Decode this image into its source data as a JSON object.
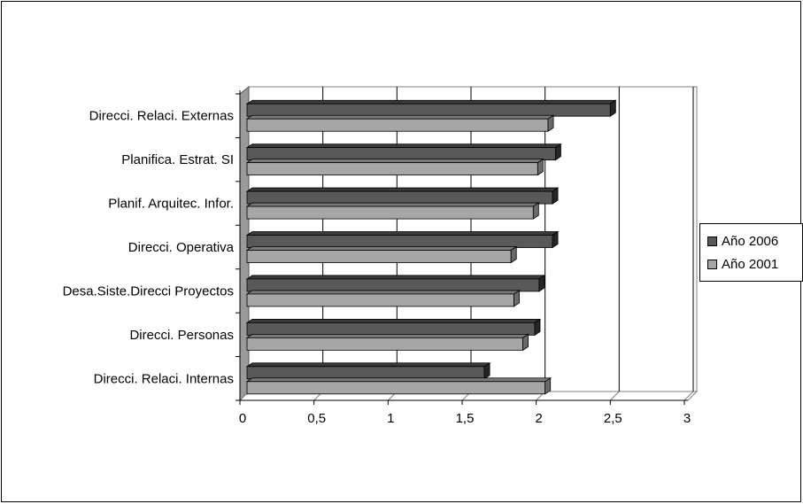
{
  "chart_data": {
    "type": "bar",
    "orientation": "horizontal",
    "style": "3d",
    "title": "",
    "xlabel": "",
    "ylabel": "",
    "categories": [
      "Direcci. Relaci. Externas",
      "Planifica. Estrat. SI",
      "Planif. Arquitec. Infor.",
      "Direcci. Operativa",
      "Desa.Siste.Direcci Proyectos",
      "Direcci. Personas",
      "Direcci. Relaci. Internas"
    ],
    "series": [
      {
        "name": "Año 2006",
        "color": "#595959",
        "values": [
          2.5,
          2.13,
          2.11,
          2.11,
          2.02,
          1.99,
          1.65
        ]
      },
      {
        "name": "Año 2001",
        "color": "#a6a6a6",
        "values": [
          2.08,
          2.01,
          1.98,
          1.83,
          1.85,
          1.91,
          2.06
        ]
      }
    ],
    "xlim": [
      0,
      3
    ],
    "xticks": [
      "0",
      "0,5",
      "1",
      "1,5",
      "2",
      "2,5",
      "3"
    ],
    "grid": true,
    "legend_position": "right"
  }
}
